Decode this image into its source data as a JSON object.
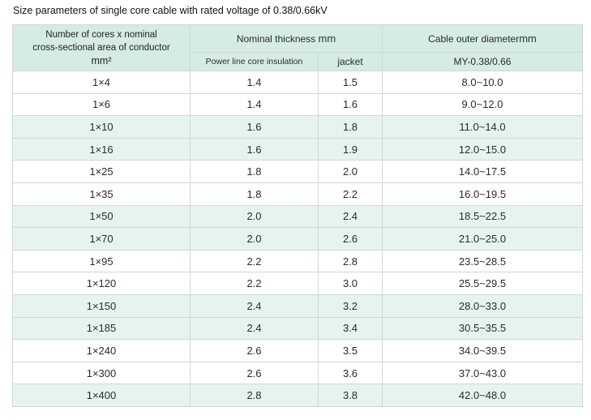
{
  "title": "Size parameters of single core cable with rated voltage of 0.38/0.66kV",
  "header": {
    "col1_line1": "Number of cores x nominal",
    "col1_line2": "cross-sectional area of conductor",
    "col1_unit": "mm²",
    "nominal_thickness": "Nominal thickness",
    "nominal_thickness_unit": "mm",
    "outer_diameter": "Cable outer diameter",
    "outer_diameter_unit": "mm",
    "sub_insulation": "Power line core insulation",
    "sub_jacket": "jacket",
    "sub_model": "MY-0.38/0.66"
  },
  "rows": [
    {
      "size": "1×4",
      "insulation": "1.4",
      "jacket": "1.5",
      "diameter": "8.0~10.0"
    },
    {
      "size": "1×6",
      "insulation": "1.4",
      "jacket": "1.6",
      "diameter": "9.0~12.0"
    },
    {
      "size": "1×10",
      "insulation": "1.6",
      "jacket": "1.8",
      "diameter": "11.0~14.0"
    },
    {
      "size": "1×16",
      "insulation": "1.6",
      "jacket": "1.9",
      "diameter": "12.0~15.0"
    },
    {
      "size": "1×25",
      "insulation": "1.8",
      "jacket": "2.0",
      "diameter": "14.0~17.5"
    },
    {
      "size": "1×35",
      "insulation": "1.8",
      "jacket": "2.2",
      "diameter": "16.0~19.5"
    },
    {
      "size": "1×50",
      "insulation": "2.0",
      "jacket": "2.4",
      "diameter": "18.5~22.5"
    },
    {
      "size": "1×70",
      "insulation": "2.0",
      "jacket": "2.6",
      "diameter": "21.0~25.0"
    },
    {
      "size": "1×95",
      "insulation": "2.2",
      "jacket": "2.8",
      "diameter": "23.5~28.5"
    },
    {
      "size": "1×120",
      "insulation": "2.2",
      "jacket": "3.0",
      "diameter": "25.5~29.5"
    },
    {
      "size": "1×150",
      "insulation": "2.4",
      "jacket": "3.2",
      "diameter": "28.0~33.0"
    },
    {
      "size": "1×185",
      "insulation": "2.4",
      "jacket": "3.4",
      "diameter": "30.5~35.5"
    },
    {
      "size": "1×240",
      "insulation": "2.6",
      "jacket": "3.5",
      "diameter": "34.0~39.5"
    },
    {
      "size": "1×300",
      "insulation": "2.6",
      "jacket": "3.6",
      "diameter": "37.0~43.0"
    },
    {
      "size": "1×400",
      "insulation": "2.8",
      "jacket": "3.8",
      "diameter": "42.0~48.0"
    }
  ],
  "colors": {
    "header_bg": "#d4ebe6",
    "shaded_row_bg": "#e6f4f0",
    "border": "#d5d5d5"
  }
}
